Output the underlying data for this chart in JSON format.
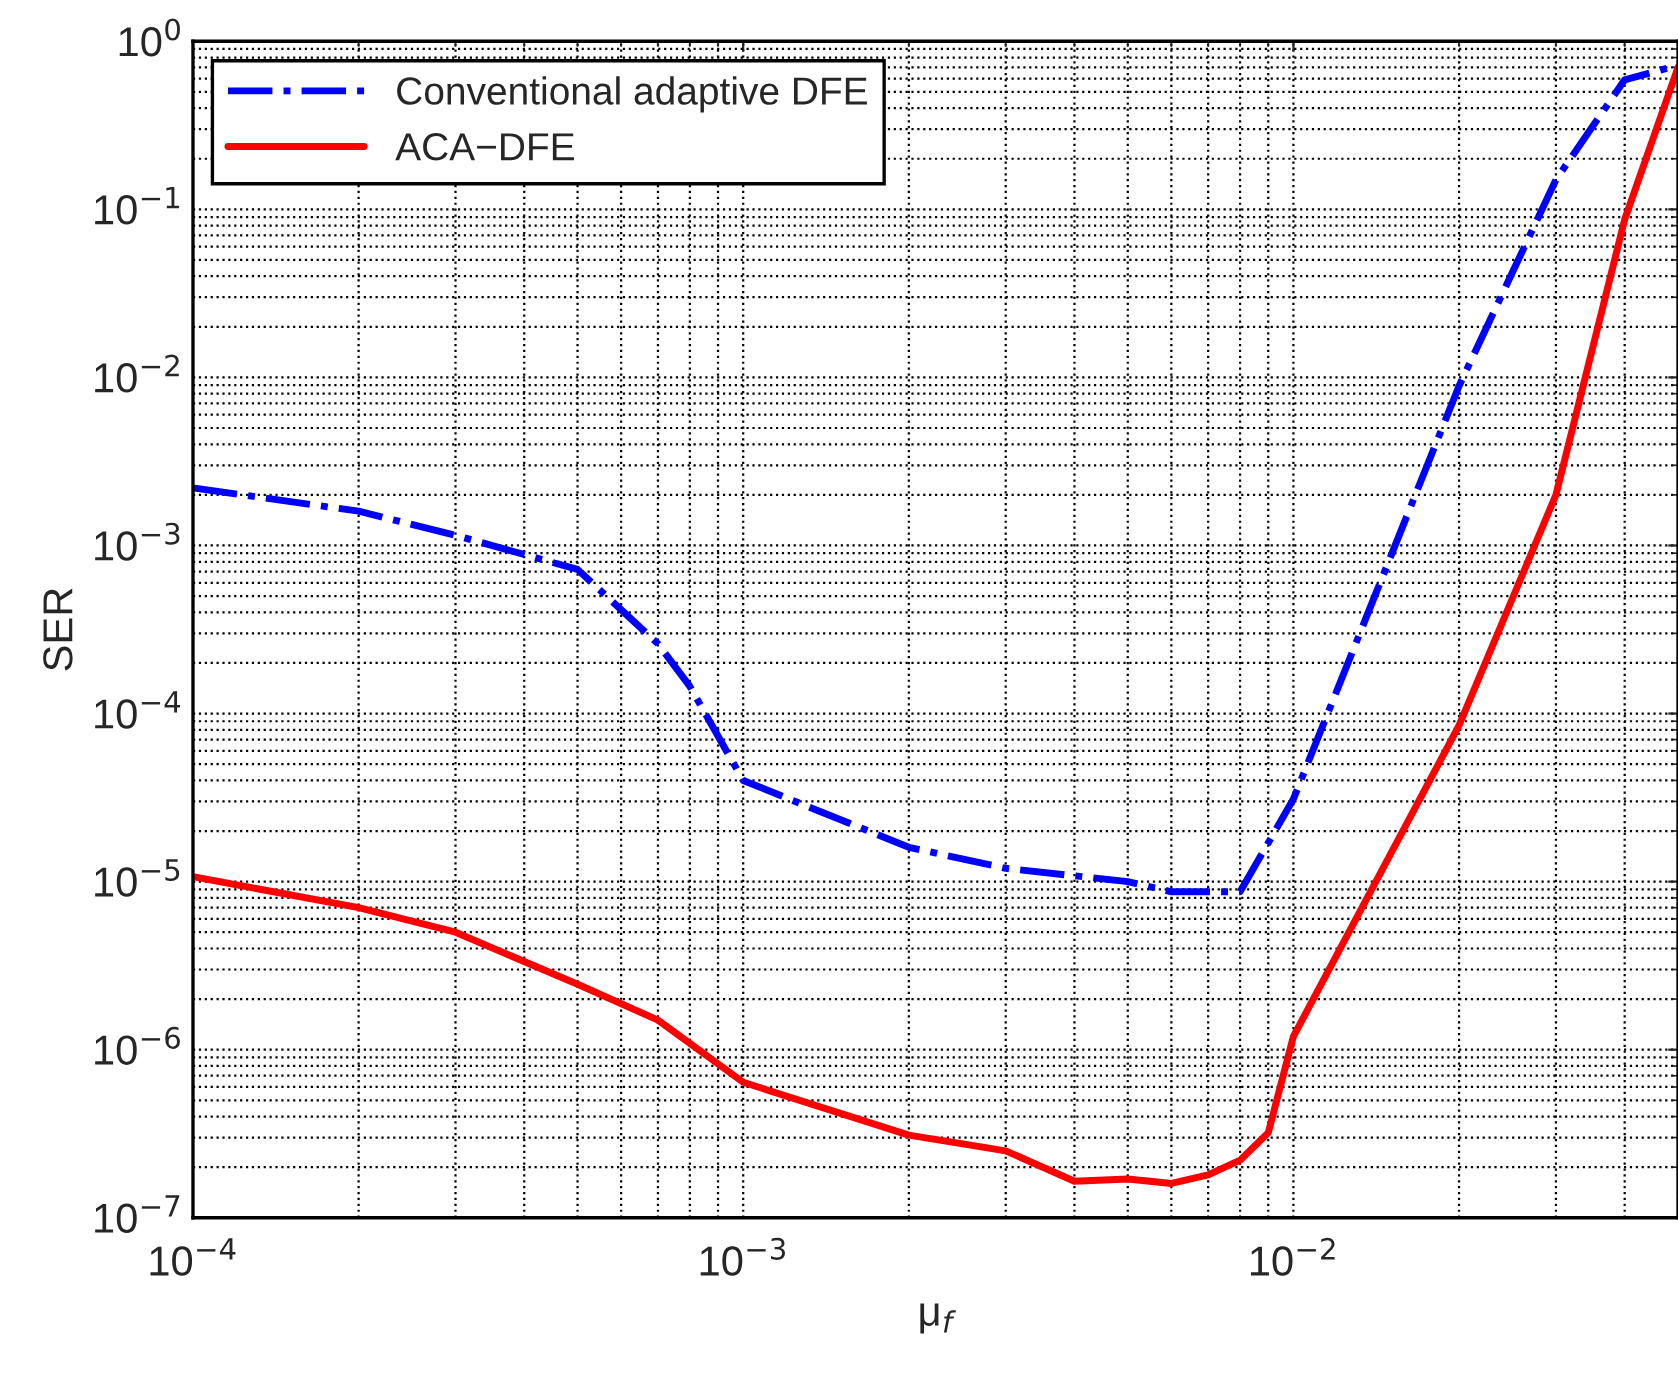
{
  "chart_data": {
    "type": "line",
    "xlabel": "μ$_{f}$",
    "ylabel": "SER",
    "log": "xy",
    "grid": true,
    "legend": "top left",
    "xlim": [
      0.0001,
      0.05
    ],
    "ylim": [
      1e-07,
      1
    ],
    "xticks": [
      {
        "value": 0.0001,
        "label": "10$^{−4}$"
      },
      {
        "value": 0.001,
        "label": "10$^{−3}$"
      },
      {
        "value": 0.01,
        "label": "10$^{−2}$"
      }
    ],
    "yticks": [
      {
        "value": 1e-07,
        "label": "10$^{−7}$"
      },
      {
        "value": 1e-06,
        "label": "10$^{−6}$"
      },
      {
        "value": 1e-05,
        "label": "10$^{−5}$"
      },
      {
        "value": 0.0001,
        "label": "10$^{−4}$"
      },
      {
        "value": 0.001,
        "label": "10$^{−3}$"
      },
      {
        "value": 0.01,
        "label": "10$^{−2}$"
      },
      {
        "value": 0.1,
        "label": "10$^{−1}$"
      },
      {
        "value": 1,
        "label": "10$^{0}$"
      }
    ],
    "series": [
      {
        "name": "Conventional adaptive DFE",
        "color": "#0000ff",
        "line_style": "dashdot",
        "x": [
          0.0001,
          0.0002,
          0.0003,
          0.0005,
          0.0007,
          0.0008,
          0.001,
          0.002,
          0.003,
          0.005,
          0.006,
          0.008,
          0.01,
          0.02,
          0.03,
          0.04,
          0.05
        ],
        "values": [
          0.0022,
          0.0016,
          0.00115,
          0.00072,
          0.00026,
          0.000145,
          4e-05,
          1.6e-05,
          1.2e-05,
          1e-05,
          8.7e-06,
          8.7e-06,
          3.1e-05,
          0.0089,
          0.15,
          0.59,
          0.72
        ]
      },
      {
        "name": "ACA−DFE",
        "color": "#ff0000",
        "line_style": "solid",
        "x": [
          0.0001,
          0.0002,
          0.0003,
          0.0005,
          0.0007,
          0.001,
          0.002,
          0.003,
          0.004,
          0.005,
          0.006,
          0.007,
          0.008,
          0.009,
          0.01,
          0.02,
          0.03,
          0.04,
          0.05
        ],
        "values": [
          1.07e-05,
          7e-06,
          5e-06,
          2.45e-06,
          1.5e-06,
          6.4e-07,
          3.1e-07,
          2.5e-07,
          1.65e-07,
          1.7e-07,
          1.6e-07,
          1.8e-07,
          2.2e-07,
          3.2e-07,
          1.2e-06,
          8.5e-05,
          0.002,
          0.087,
          0.7
        ]
      }
    ]
  }
}
